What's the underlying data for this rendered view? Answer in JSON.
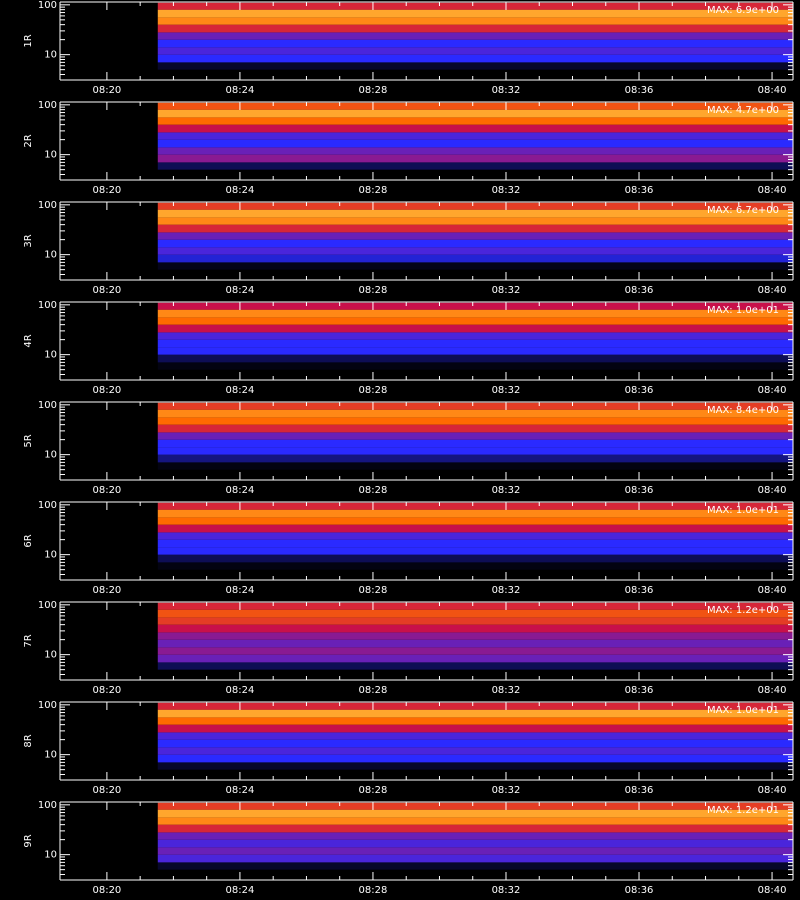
{
  "chart_data": [
    {
      "type": "spectrogram",
      "ylabel": "1R",
      "max_label": "MAX: 6.9e+00",
      "values": [
        0.05,
        0.3,
        0.35,
        0.3,
        0.4,
        0.6,
        0.8,
        0.85,
        0.6
      ]
    },
    {
      "type": "spectrogram",
      "ylabel": "2R",
      "max_label": "MAX: 4.7e+00",
      "values": [
        0.1,
        0.45,
        0.4,
        0.3,
        0.35,
        0.55,
        0.75,
        0.85,
        0.7
      ]
    },
    {
      "type": "spectrogram",
      "ylabel": "3R",
      "max_label": "MAX: 6.7e+00",
      "values": [
        0.03,
        0.25,
        0.35,
        0.3,
        0.4,
        0.6,
        0.8,
        0.85,
        0.65
      ]
    },
    {
      "type": "spectrogram",
      "ylabel": "4R",
      "max_label": "MAX: 1.0e+01",
      "values": [
        0.02,
        0.1,
        0.3,
        0.3,
        0.35,
        0.55,
        0.75,
        0.8,
        0.55
      ]
    },
    {
      "type": "spectrogram",
      "ylabel": "5R",
      "max_label": "MAX: 8.4e+00",
      "values": [
        0.02,
        0.15,
        0.3,
        0.3,
        0.4,
        0.6,
        0.75,
        0.8,
        0.65
      ]
    },
    {
      "type": "spectrogram",
      "ylabel": "6R",
      "max_label": "MAX: 1.0e+01",
      "values": [
        0.02,
        0.1,
        0.3,
        0.3,
        0.35,
        0.55,
        0.75,
        0.8,
        0.6
      ]
    },
    {
      "type": "spectrogram",
      "ylabel": "7R",
      "max_label": "MAX: 1.2e+00",
      "values": [
        0.1,
        0.4,
        0.45,
        0.4,
        0.45,
        0.55,
        0.65,
        0.7,
        0.6
      ]
    },
    {
      "type": "spectrogram",
      "ylabel": "8R",
      "max_label": "MAX: 1.0e+01",
      "values": [
        0.05,
        0.3,
        0.35,
        0.3,
        0.35,
        0.55,
        0.75,
        0.85,
        0.6
      ]
    },
    {
      "type": "spectrogram",
      "ylabel": "9R",
      "max_label": "MAX: 1.2e+01",
      "values": [
        0.05,
        0.35,
        0.4,
        0.35,
        0.4,
        0.6,
        0.8,
        0.85,
        0.65
      ]
    }
  ],
  "axes": {
    "energy_bins": [
      5,
      7,
      10,
      14,
      20,
      28,
      40,
      56,
      80,
      110
    ],
    "time_range": [
      21.53,
      40.63
    ],
    "ylim": [
      3.1,
      114
    ],
    "yscale": "log",
    "yticks": [
      10,
      100
    ],
    "yminor": [
      4,
      5,
      6,
      7,
      8,
      9,
      20,
      30,
      40,
      50,
      60,
      70,
      80,
      90
    ],
    "xlim": [
      18.59,
      40.63
    ],
    "xticks": [
      {
        "value": 20,
        "label": "08:20"
      },
      {
        "value": 24,
        "label": "08:24"
      },
      {
        "value": 28,
        "label": "08:28"
      },
      {
        "value": 32,
        "label": "08:32"
      },
      {
        "value": 36,
        "label": "08:36"
      },
      {
        "value": 40,
        "label": "08:40"
      }
    ],
    "xminor": [
      21,
      22,
      23,
      25,
      26,
      27,
      29,
      30,
      31,
      33,
      34,
      35,
      37,
      38,
      39
    ],
    "colorscale": [
      [
        0,
        "#000000"
      ],
      [
        0.3,
        "#2a2aff"
      ],
      [
        0.55,
        "#c8104a"
      ],
      [
        0.75,
        "#ff6a00"
      ],
      [
        1,
        "#ffff70"
      ]
    ]
  }
}
